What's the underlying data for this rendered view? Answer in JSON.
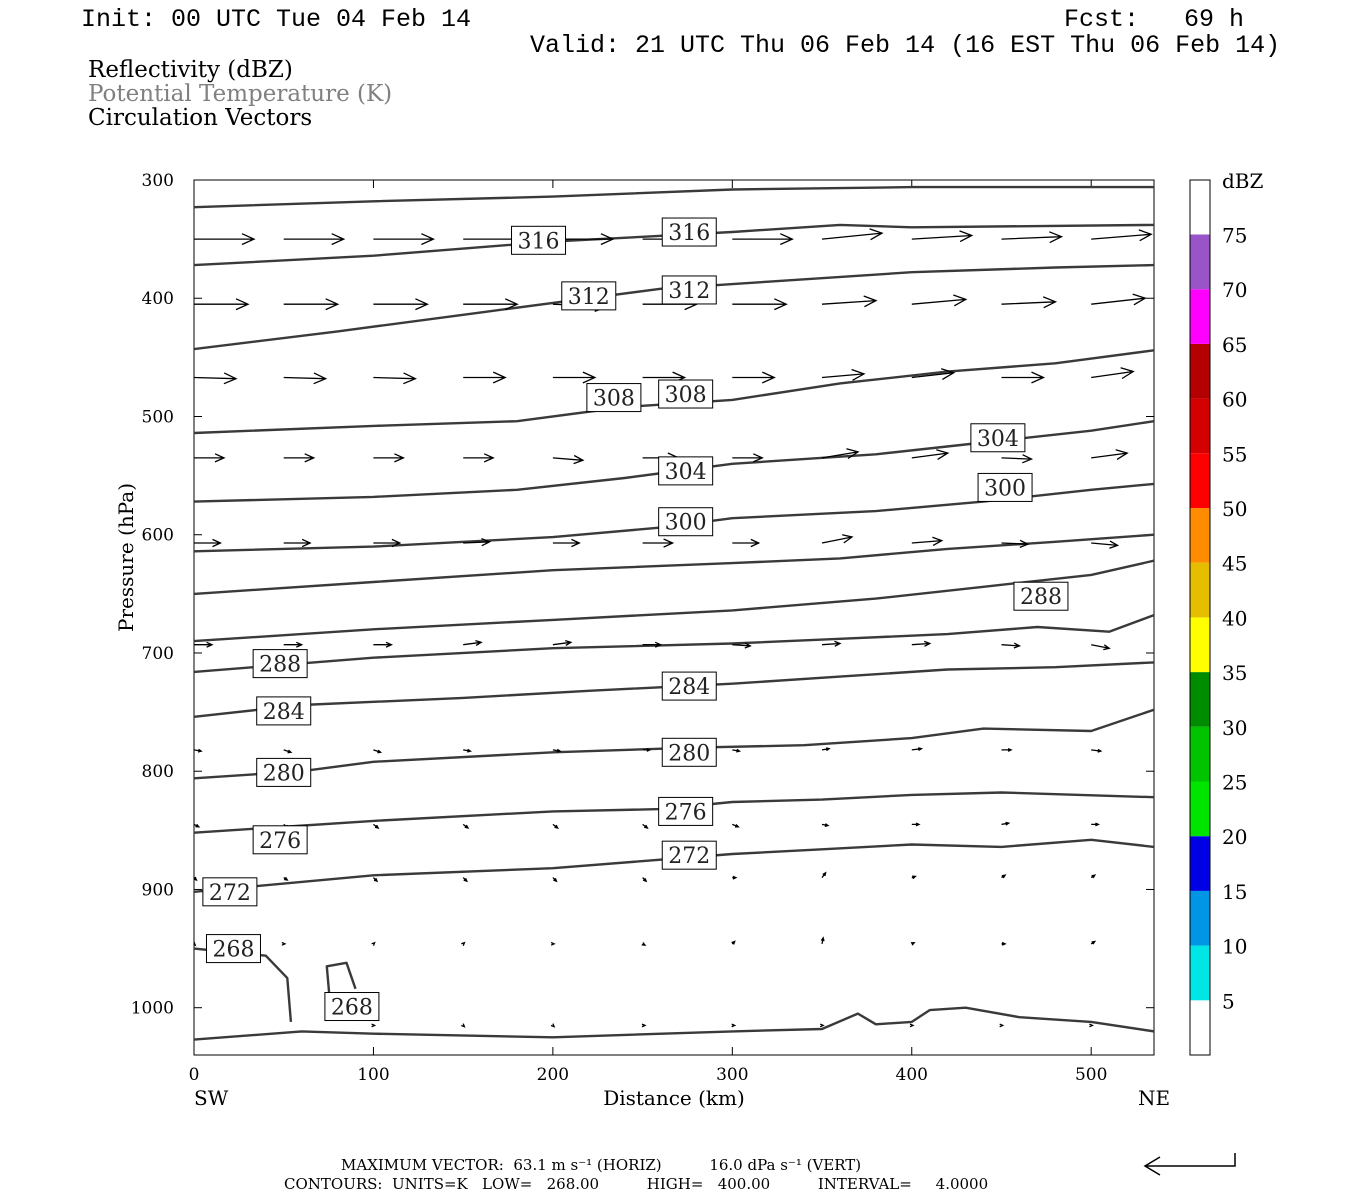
{
  "header": {
    "init": "Init: 00 UTC Tue 04 Feb 14",
    "fcst": "Fcst:   69 h",
    "valid": "Valid: 21 UTC Thu 06 Feb 14 (16 EST Thu 06 Feb 14)"
  },
  "legend": {
    "line1": "Reflectivity (dBZ)",
    "line2": "Potential Temperature (K)",
    "line3": "Circulation Vectors",
    "line2_color": "#808080"
  },
  "footer": {
    "line1": "MAXIMUM VECTOR:  63.1 m s⁻¹ (HORIZ)          16.0 dPa s⁻¹ (VERT)",
    "line2": "CONTOURS:  UNITS=K   LOW=   268.00          HIGH=   400.00          INTERVAL=     4.0000"
  },
  "chart_data": {
    "type": "line",
    "title": "Reflectivity (dBZ) / Potential Temperature (K) / Circulation Vectors",
    "xlabel": "Distance (km)",
    "ylabel": "Pressure (hPa)",
    "x_range": [
      0,
      535
    ],
    "y_range": [
      300,
      1040
    ],
    "y_inverted": true,
    "x_ticks": [
      0,
      100,
      200,
      300,
      400,
      500
    ],
    "y_ticks": [
      300,
      400,
      500,
      600,
      700,
      800,
      900,
      1000
    ],
    "x_end_labels": {
      "left": "SW",
      "right": "NE"
    },
    "contour_color": "#3a3a3a",
    "contours": [
      {
        "label": "",
        "points": [
          [
            0,
            323
          ],
          [
            100,
            318
          ],
          [
            200,
            314
          ],
          [
            300,
            308
          ],
          [
            400,
            306
          ],
          [
            535,
            306
          ]
        ]
      },
      {
        "label": "316",
        "points": [
          [
            0,
            372
          ],
          [
            100,
            364
          ],
          [
            200,
            352
          ],
          [
            250,
            348
          ],
          [
            300,
            344
          ],
          [
            360,
            338
          ],
          [
            400,
            340
          ],
          [
            535,
            338
          ]
        ]
      },
      {
        "label": "312",
        "points": [
          [
            0,
            443
          ],
          [
            80,
            428
          ],
          [
            160,
            412
          ],
          [
            220,
            400
          ],
          [
            260,
            392
          ],
          [
            320,
            386
          ],
          [
            400,
            378
          ],
          [
            480,
            374
          ],
          [
            535,
            372
          ]
        ]
      },
      {
        "label": "308",
        "points": [
          [
            0,
            514
          ],
          [
            100,
            508
          ],
          [
            180,
            504
          ],
          [
            240,
            492
          ],
          [
            300,
            486
          ],
          [
            360,
            472
          ],
          [
            420,
            462
          ],
          [
            480,
            455
          ],
          [
            535,
            444
          ]
        ]
      },
      {
        "label": "304",
        "points": [
          [
            0,
            572
          ],
          [
            100,
            568
          ],
          [
            180,
            562
          ],
          [
            240,
            552
          ],
          [
            300,
            540
          ],
          [
            380,
            532
          ],
          [
            440,
            522
          ],
          [
            500,
            512
          ],
          [
            535,
            504
          ]
        ]
      },
      {
        "label": "300",
        "points": [
          [
            0,
            614
          ],
          [
            100,
            610
          ],
          [
            200,
            602
          ],
          [
            260,
            594
          ],
          [
            300,
            586
          ],
          [
            380,
            580
          ],
          [
            440,
            572
          ],
          [
            500,
            562
          ],
          [
            535,
            557
          ]
        ]
      },
      {
        "label": "",
        "points": [
          [
            0,
            650
          ],
          [
            100,
            640
          ],
          [
            200,
            630
          ],
          [
            300,
            624
          ],
          [
            360,
            620
          ],
          [
            420,
            612
          ],
          [
            480,
            606
          ],
          [
            535,
            600
          ]
        ]
      },
      {
        "label": "288",
        "points": [
          [
            0,
            690
          ],
          [
            100,
            680
          ],
          [
            200,
            672
          ],
          [
            300,
            664
          ],
          [
            380,
            654
          ],
          [
            440,
            644
          ],
          [
            500,
            634
          ],
          [
            535,
            622
          ]
        ]
      },
      {
        "label": "",
        "points": [
          [
            0,
            716
          ],
          [
            100,
            704
          ],
          [
            200,
            696
          ],
          [
            300,
            692
          ],
          [
            360,
            688
          ],
          [
            420,
            684
          ],
          [
            470,
            678
          ],
          [
            510,
            682
          ],
          [
            535,
            668
          ]
        ]
      },
      {
        "label": "284",
        "points": [
          [
            0,
            754
          ],
          [
            60,
            744
          ],
          [
            150,
            738
          ],
          [
            220,
            732
          ],
          [
            300,
            726
          ],
          [
            360,
            720
          ],
          [
            420,
            714
          ],
          [
            480,
            712
          ],
          [
            535,
            708
          ]
        ]
      },
      {
        "label": "280",
        "points": [
          [
            0,
            806
          ],
          [
            60,
            800
          ],
          [
            100,
            792
          ],
          [
            200,
            784
          ],
          [
            280,
            780
          ],
          [
            340,
            778
          ],
          [
            400,
            772
          ],
          [
            440,
            764
          ],
          [
            500,
            766
          ],
          [
            535,
            748
          ]
        ]
      },
      {
        "label": "276",
        "points": [
          [
            0,
            852
          ],
          [
            100,
            842
          ],
          [
            200,
            834
          ],
          [
            260,
            832
          ],
          [
            300,
            826
          ],
          [
            350,
            824
          ],
          [
            400,
            820
          ],
          [
            450,
            818
          ],
          [
            535,
            822
          ]
        ]
      },
      {
        "label": "272",
        "points": [
          [
            0,
            902
          ],
          [
            100,
            888
          ],
          [
            200,
            882
          ],
          [
            300,
            870
          ],
          [
            350,
            866
          ],
          [
            400,
            862
          ],
          [
            450,
            864
          ],
          [
            500,
            858
          ],
          [
            535,
            864
          ]
        ]
      },
      {
        "label": "268",
        "points": [
          [
            0,
            950
          ],
          [
            40,
            956
          ],
          [
            52,
            975
          ],
          [
            54,
            1012
          ]
        ]
      },
      {
        "label": "268",
        "points": [
          [
            76,
            1000
          ],
          [
            74,
            965
          ],
          [
            85,
            962
          ],
          [
            90,
            984
          ]
        ]
      },
      {
        "label": "",
        "points": [
          [
            0,
            1027
          ],
          [
            60,
            1020
          ],
          [
            100,
            1022
          ],
          [
            200,
            1025
          ],
          [
            300,
            1020
          ],
          [
            350,
            1018
          ],
          [
            370,
            1005
          ],
          [
            380,
            1014
          ],
          [
            400,
            1012
          ],
          [
            410,
            1002
          ],
          [
            430,
            1000
          ],
          [
            460,
            1008
          ],
          [
            500,
            1012
          ],
          [
            535,
            1020
          ]
        ]
      }
    ],
    "contour_labels": [
      {
        "text": "316",
        "x": 192,
        "p": 351
      },
      {
        "text": "316",
        "x": 276,
        "p": 344
      },
      {
        "text": "312",
        "x": 220,
        "p": 398
      },
      {
        "text": "312",
        "x": 276,
        "p": 393
      },
      {
        "text": "308",
        "x": 234,
        "p": 484
      },
      {
        "text": "308",
        "x": 274,
        "p": 481
      },
      {
        "text": "304",
        "x": 274,
        "p": 546
      },
      {
        "text": "304",
        "x": 448,
        "p": 518
      },
      {
        "text": "300",
        "x": 274,
        "p": 589
      },
      {
        "text": "300",
        "x": 452,
        "p": 560
      },
      {
        "text": "288",
        "x": 472,
        "p": 652
      },
      {
        "text": "288",
        "x": 48,
        "p": 709
      },
      {
        "text": "284",
        "x": 50,
        "p": 749
      },
      {
        "text": "284",
        "x": 276,
        "p": 728
      },
      {
        "text": "280",
        "x": 50,
        "p": 801
      },
      {
        "text": "280",
        "x": 276,
        "p": 784
      },
      {
        "text": "276",
        "x": 48,
        "p": 858
      },
      {
        "text": "276",
        "x": 274,
        "p": 834
      },
      {
        "text": "272",
        "x": 20,
        "p": 902
      },
      {
        "text": "272",
        "x": 276,
        "p": 871
      },
      {
        "text": "268",
        "x": 22,
        "p": 950
      },
      {
        "text": "268",
        "x": 88,
        "p": 999
      }
    ],
    "vector_rows": [
      {
        "p": 350,
        "u": [
          50,
          50,
          50,
          50,
          50,
          50,
          50,
          50,
          50,
          50,
          50
        ],
        "w": [
          0,
          0,
          0,
          0,
          0,
          0,
          0,
          -5,
          -3,
          -2,
          -4
        ]
      },
      {
        "p": 405,
        "u": [
          45,
          45,
          45,
          45,
          45,
          45,
          45,
          45,
          45,
          45,
          45
        ],
        "w": [
          0,
          0,
          0,
          0,
          2,
          0,
          0,
          -3,
          -4,
          -2,
          -5
        ]
      },
      {
        "p": 467,
        "u": [
          35,
          35,
          35,
          35,
          35,
          35,
          35,
          35,
          35,
          35,
          35
        ],
        "w": [
          1,
          1,
          1,
          0,
          0,
          0,
          0,
          -3,
          -4,
          0,
          -5
        ]
      },
      {
        "p": 535,
        "u": [
          25,
          25,
          25,
          25,
          25,
          30,
          25,
          30,
          30,
          25,
          30
        ],
        "w": [
          0,
          0,
          0,
          0,
          2,
          0,
          0,
          -5,
          -4,
          1,
          -4
        ]
      },
      {
        "p": 607,
        "u": [
          22,
          22,
          22,
          22,
          22,
          25,
          22,
          25,
          25,
          22,
          22
        ],
        "w": [
          0,
          0,
          0,
          -1,
          0,
          0,
          0,
          -5,
          -2,
          1,
          2
        ]
      },
      {
        "p": 693,
        "u": [
          15,
          15,
          15,
          15,
          15,
          15,
          15,
          15,
          15,
          15,
          15
        ],
        "w": [
          0,
          0,
          0,
          -2,
          -2,
          0,
          1,
          -1,
          -1,
          1,
          3
        ]
      },
      {
        "p": 782,
        "u": [
          6,
          6,
          6,
          6,
          6,
          6,
          6,
          6,
          8,
          8,
          8
        ],
        "w": [
          1,
          2,
          2,
          1,
          1,
          0,
          1,
          -1,
          -1,
          0,
          1
        ]
      },
      {
        "p": 845,
        "u": [
          4,
          4,
          4,
          4,
          4,
          4,
          5,
          5,
          6,
          6,
          6
        ],
        "w": [
          2,
          3,
          3,
          3,
          3,
          3,
          2,
          1,
          0,
          -1,
          0
        ]
      },
      {
        "p": 890,
        "u": [
          2,
          3,
          3,
          3,
          3,
          3,
          3,
          3,
          3,
          3,
          3
        ],
        "w": [
          2,
          2,
          3,
          3,
          3,
          3,
          0,
          -4,
          -1,
          -2,
          -2
        ]
      },
      {
        "p": 946,
        "u": [
          1,
          1,
          1,
          1,
          1,
          2,
          2,
          1,
          2,
          3,
          3
        ],
        "w": [
          1,
          0,
          -1,
          -1,
          0,
          1,
          -2,
          -5,
          -1,
          0,
          -2
        ]
      },
      {
        "p": 1015,
        "u": [
          0,
          0,
          1,
          1,
          1,
          2,
          2,
          1,
          1,
          1,
          1
        ],
        "w": [
          0,
          0,
          0,
          1,
          1,
          0,
          0,
          0,
          0,
          0,
          0
        ]
      }
    ],
    "vector_xs": [
      0,
      50,
      100,
      150,
      200,
      250,
      300,
      350,
      400,
      450,
      500
    ],
    "colorbar": {
      "unit": "dBZ",
      "levels": [
        5,
        10,
        15,
        20,
        25,
        30,
        35,
        40,
        45,
        50,
        55,
        60,
        65,
        70,
        75
      ],
      "colors": [
        "#ffffff",
        "#00e5e5",
        "#0095e5",
        "#0000e5",
        "#00e500",
        "#00c400",
        "#008c00",
        "#ffff00",
        "#e5be00",
        "#ff8c00",
        "#ff0000",
        "#d40000",
        "#b40000",
        "#ff00ff",
        "#9955c8",
        "#ffffff"
      ]
    },
    "max_vector": {
      "horiz": "63.1 m s⁻¹",
      "vert": "16.0 dPa s⁻¹"
    },
    "contour_low": 268.0,
    "contour_high": 400.0,
    "contour_interval": 4.0
  }
}
